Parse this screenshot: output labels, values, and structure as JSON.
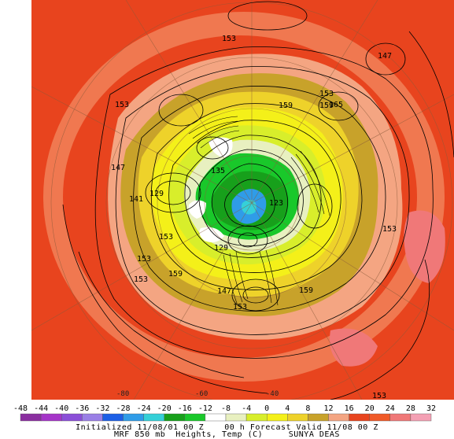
{
  "map": {
    "projection": "polar-stereographic-north",
    "background_color": "#e8441e",
    "contour_labels": [
      "153",
      "147",
      "153",
      "153",
      "159",
      "159",
      "165",
      "147",
      "141",
      "129",
      "135",
      "129",
      "123",
      "153",
      "159",
      "153",
      "147",
      "153",
      "159",
      "153",
      "153",
      "153"
    ],
    "longitude_labels": [
      "-80",
      "-60",
      "-40"
    ]
  },
  "colorbar": {
    "ticks": [
      "-48",
      "-44",
      "-40",
      "-36",
      "-32",
      "-28",
      "-24",
      "-20",
      "-16",
      "-12",
      "-8",
      "-4",
      "0",
      "4",
      "8",
      "12",
      "16",
      "20",
      "24",
      "28",
      "32"
    ],
    "colors": [
      "#8b2fa0",
      "#a535c8",
      "#8b4fd8",
      "#9a7fe6",
      "#1c5fe6",
      "#2f9ce8",
      "#35d0d8",
      "#17a01b",
      "#19c82a",
      "#ffffff",
      "#e8f0c0",
      "#d8ee2b",
      "#f4f019",
      "#eed22a",
      "#c8a22a",
      "#f4a582",
      "#e8441e",
      "#f05a28",
      "#f07878",
      "#f4a0b4"
    ]
  },
  "caption": {
    "line1": "Initialized 11/08/01 00 Z    00 h Forecast Valid 11/08 00 Z",
    "line2": "MRF 850 mb  Heights, Temp (C)     SUNYA DEAS"
  }
}
